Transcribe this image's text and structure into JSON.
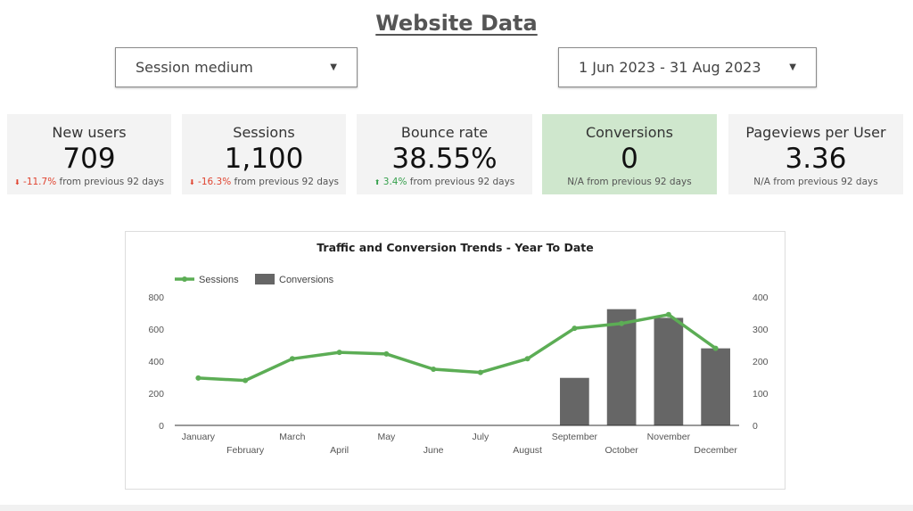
{
  "page": {
    "title": "Website Data"
  },
  "filters": {
    "medium": {
      "label": "Session medium"
    },
    "date_range": {
      "label": "1 Jun 2023 - 31 Aug 2023"
    }
  },
  "kpis": [
    {
      "label": "New users",
      "value": "709",
      "delta": "-11.7%",
      "direction": "down",
      "suffix": "from previous 92 days"
    },
    {
      "label": "Sessions",
      "value": "1,100",
      "delta": "-16.3%",
      "direction": "down",
      "suffix": "from previous 92 days"
    },
    {
      "label": "Bounce rate",
      "value": "38.55%",
      "delta": "3.4%",
      "direction": "up",
      "suffix": "from previous 92 days"
    },
    {
      "label": "Conversions",
      "value": "0",
      "delta": "N/A",
      "direction": "none",
      "suffix": "from previous 92 days"
    },
    {
      "label": "Pageviews per User",
      "value": "3.36",
      "delta": "N/A",
      "direction": "none",
      "suffix": "from previous 92 days"
    }
  ],
  "colors": {
    "sessions": "#5cad55",
    "conversions": "#666666",
    "negative": "#e0432f",
    "positive": "#35a04c",
    "highlight": "#cfe7cd"
  },
  "icons": {
    "dropdown": "caret-down-icon",
    "down": "arrow-down-icon",
    "up": "arrow-up-icon"
  },
  "chart_data": {
    "type": "bar",
    "title": "Traffic and Conversion Trends - Year To Date",
    "categories": [
      "January",
      "February",
      "March",
      "April",
      "May",
      "June",
      "July",
      "August",
      "September",
      "October",
      "November",
      "December"
    ],
    "series": [
      {
        "name": "Sessions",
        "type": "line",
        "axis": "left",
        "values": [
          295,
          280,
          415,
          455,
          445,
          350,
          330,
          415,
          605,
          635,
          690,
          480
        ]
      },
      {
        "name": "Conversions",
        "type": "bar",
        "axis": "right",
        "values": [
          0,
          0,
          0,
          0,
          0,
          0,
          0,
          0,
          148,
          362,
          335,
          240
        ]
      }
    ],
    "y_left": {
      "ticks": [
        0,
        200,
        400,
        600,
        800
      ],
      "range": [
        0,
        800
      ]
    },
    "y_right": {
      "ticks": [
        0,
        100,
        200,
        300,
        400
      ],
      "range": [
        0,
        400
      ]
    },
    "legend_position": "top-left",
    "grid": false
  }
}
